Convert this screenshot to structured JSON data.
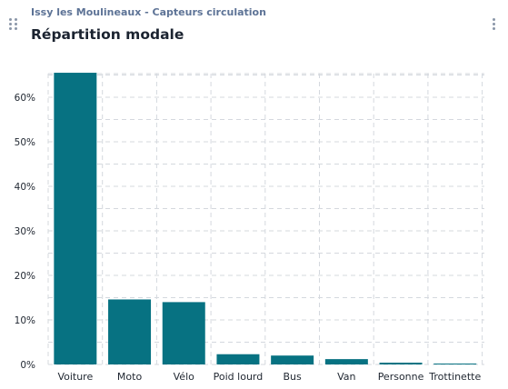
{
  "header": {
    "subtitle": "Issy les Moulineaux - Capteurs circulation",
    "title": "Répartition modale"
  },
  "icons": {
    "drag": "drag-handle-icon",
    "more": "more-vertical-icon"
  },
  "colors": {
    "bar": "#077282",
    "grid": "#d4d8de"
  },
  "chart_data": {
    "type": "bar",
    "categories": [
      "Voiture",
      "Moto",
      "Vélo",
      "Poid lourd",
      "Bus",
      "Van",
      "Personne",
      "Trottinette"
    ],
    "values": [
      65.5,
      14.6,
      14.0,
      2.3,
      2.0,
      1.2,
      0.4,
      0.1
    ],
    "title": "Répartition modale",
    "xlabel": "",
    "ylabel": "",
    "ylim": [
      0,
      67
    ],
    "yticks": [
      "0%",
      "10%",
      "20%",
      "30%",
      "40%",
      "50%",
      "60%"
    ],
    "grid": true,
    "legend": "none"
  }
}
